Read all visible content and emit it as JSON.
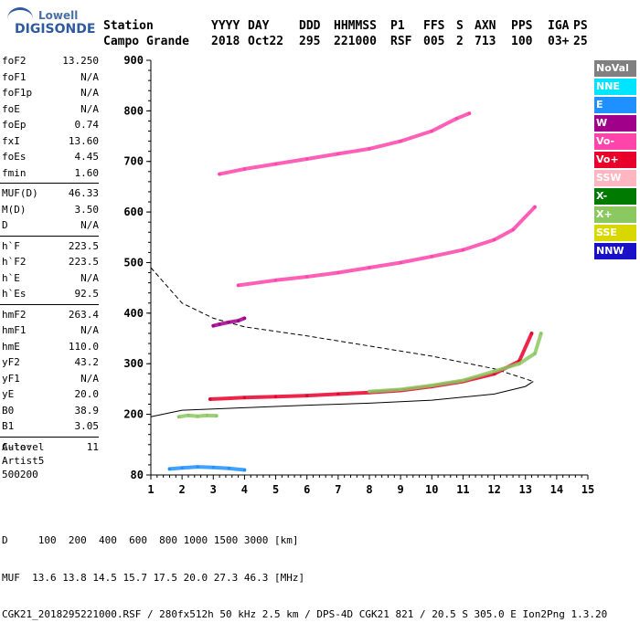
{
  "logo": {
    "line1": "Lowell",
    "line2": "DIGISONDE"
  },
  "header": {
    "row1": [
      "Station",
      "YYYY",
      "DAY",
      "DDD",
      "HHMMSS",
      "P1",
      "FFS",
      "S",
      "AXN",
      "PPS",
      "IGA",
      "PS"
    ],
    "row2": [
      "Campo Grande",
      "2018",
      "Oct22",
      "295",
      "221000",
      "RSF",
      "005",
      "2",
      "713",
      "100",
      "03+",
      "25"
    ]
  },
  "params": {
    "group1": [
      {
        "k": "foF2",
        "v": "13.250"
      },
      {
        "k": "foF1",
        "v": "N/A"
      },
      {
        "k": "foF1p",
        "v": "N/A"
      },
      {
        "k": "foE",
        "v": "N/A"
      },
      {
        "k": "foEp",
        "v": "0.74"
      },
      {
        "k": "fxI",
        "v": "13.60"
      },
      {
        "k": "foEs",
        "v": "4.45"
      },
      {
        "k": "fmin",
        "v": "1.60"
      }
    ],
    "group2": [
      {
        "k": "MUF(D)",
        "v": "46.33"
      },
      {
        "k": "M(D)",
        "v": "3.50"
      },
      {
        "k": "D",
        "v": "N/A"
      }
    ],
    "group3": [
      {
        "k": "h`F",
        "v": "223.5"
      },
      {
        "k": "h`F2",
        "v": "223.5"
      },
      {
        "k": "h`E",
        "v": "N/A"
      },
      {
        "k": "h`Es",
        "v": "92.5"
      }
    ],
    "group4": [
      {
        "k": "hmF2",
        "v": "263.4"
      },
      {
        "k": "hmF1",
        "v": "N/A"
      },
      {
        "k": "hmE",
        "v": "110.0"
      },
      {
        "k": "yF2",
        "v": "43.2"
      },
      {
        "k": "yF1",
        "v": "N/A"
      },
      {
        "k": "yE",
        "v": "20.0"
      },
      {
        "k": "B0",
        "v": "38.9"
      },
      {
        "k": "B1",
        "v": "3.05"
      }
    ],
    "group5": [
      {
        "k": "C-level",
        "v": "11"
      }
    ]
  },
  "auto": {
    "line1": "Auto:",
    "line2": "Artist5",
    "line3": "500200"
  },
  "footer": {
    "line1": "D     100  200  400  600  800 1000 1500 3000 [km]",
    "line2": "MUF  13.6 13.8 14.5 15.7 17.5 20.0 27.3 46.3 [MHz]",
    "line3": "CGK21_2018295221000.RSF / 280fx512h 50 kHz 2.5 km / DPS-4D CGK21 821 / 20.5 S 305.0 E Ion2Png 1.3.20"
  },
  "legend": [
    {
      "label": "NoVal",
      "bg": "#808080",
      "fg": "#ffffff"
    },
    {
      "label": "NNE",
      "bg": "#00e5ff",
      "fg": "#ffffff"
    },
    {
      "label": "E",
      "bg": "#1e90ff",
      "fg": "#ffffff"
    },
    {
      "label": "W",
      "bg": "#a0008a",
      "fg": "#ffffff"
    },
    {
      "label": "Vo-",
      "bg": "#ff44aa",
      "fg": "#ffffff"
    },
    {
      "label": "Vo+",
      "bg": "#e8002a",
      "fg": "#ffffff"
    },
    {
      "label": "SSW",
      "bg": "#ffb6c1",
      "fg": "#ffffff"
    },
    {
      "label": "X-",
      "bg": "#007a00",
      "fg": "#ffffff"
    },
    {
      "label": "X+",
      "bg": "#8cc860",
      "fg": "#ffffff"
    },
    {
      "label": "SSE",
      "bg": "#d8d800",
      "fg": "#ffffff"
    },
    {
      "label": "NNW",
      "bg": "#1a10c8",
      "fg": "#ffffff"
    }
  ],
  "chart_data": {
    "type": "scatter",
    "title": "",
    "xlabel": "",
    "ylabel": "",
    "xlim": [
      1,
      15
    ],
    "ylim": [
      80,
      900
    ],
    "x_ticks": [
      1,
      2,
      3,
      4,
      5,
      6,
      7,
      8,
      9,
      10,
      11,
      12,
      13,
      14,
      15
    ],
    "y_ticks": [
      80,
      200,
      300,
      400,
      500,
      600,
      700,
      800,
      900
    ],
    "series": [
      {
        "color": "#e8002a",
        "points": [
          [
            2.9,
            230
          ],
          [
            4,
            233
          ],
          [
            5,
            235
          ],
          [
            6,
            237
          ],
          [
            7,
            240
          ],
          [
            8,
            243
          ],
          [
            9,
            247
          ],
          [
            10,
            255
          ],
          [
            11,
            265
          ],
          [
            12,
            280
          ],
          [
            12.8,
            305
          ],
          [
            13.2,
            360
          ]
        ]
      },
      {
        "color": "#ff44aa",
        "points": [
          [
            3.8,
            455
          ],
          [
            5,
            465
          ],
          [
            6,
            472
          ],
          [
            7,
            480
          ],
          [
            8,
            490
          ],
          [
            9,
            500
          ],
          [
            10,
            512
          ],
          [
            11,
            525
          ],
          [
            12,
            545
          ],
          [
            12.6,
            565
          ],
          [
            13.3,
            610
          ]
        ]
      },
      {
        "color": "#ff44aa",
        "points": [
          [
            3.2,
            675
          ],
          [
            4,
            685
          ],
          [
            5,
            695
          ],
          [
            6,
            705
          ],
          [
            7,
            715
          ],
          [
            8,
            725
          ],
          [
            9,
            740
          ],
          [
            10,
            760
          ],
          [
            10.8,
            785
          ],
          [
            11.2,
            795
          ]
        ]
      },
      {
        "color": "#8cc860",
        "points": [
          [
            8,
            245
          ],
          [
            9,
            249
          ],
          [
            10,
            257
          ],
          [
            11,
            267
          ],
          [
            12,
            285
          ],
          [
            12.8,
            300
          ],
          [
            13.3,
            320
          ],
          [
            13.5,
            360
          ]
        ]
      },
      {
        "color": "#1e90ff",
        "points": [
          [
            1.6,
            92
          ],
          [
            2,
            94
          ],
          [
            2.5,
            96
          ],
          [
            3,
            95
          ],
          [
            3.5,
            93
          ],
          [
            4,
            90
          ]
        ]
      },
      {
        "color": "#a0008a",
        "points": [
          [
            3,
            375
          ],
          [
            3.2,
            378
          ],
          [
            3.5,
            382
          ],
          [
            3.8,
            385
          ],
          [
            4,
            390
          ]
        ]
      },
      {
        "color": "#8cc860",
        "points": [
          [
            1.9,
            195
          ],
          [
            2.2,
            198
          ],
          [
            2.5,
            196
          ],
          [
            2.8,
            198
          ],
          [
            3.1,
            197
          ]
        ]
      }
    ],
    "profile_dashed": [
      [
        1,
        490
      ],
      [
        2,
        420
      ],
      [
        3,
        390
      ],
      [
        4,
        373
      ],
      [
        6,
        355
      ],
      [
        8,
        335
      ],
      [
        10,
        315
      ],
      [
        12,
        290
      ],
      [
        13.25,
        265
      ]
    ],
    "profile_solid": [
      [
        1,
        195
      ],
      [
        2,
        208
      ],
      [
        4,
        213
      ],
      [
        6,
        218
      ],
      [
        8,
        222
      ],
      [
        10,
        228
      ],
      [
        12,
        240
      ],
      [
        13,
        255
      ],
      [
        13.25,
        265
      ]
    ]
  }
}
